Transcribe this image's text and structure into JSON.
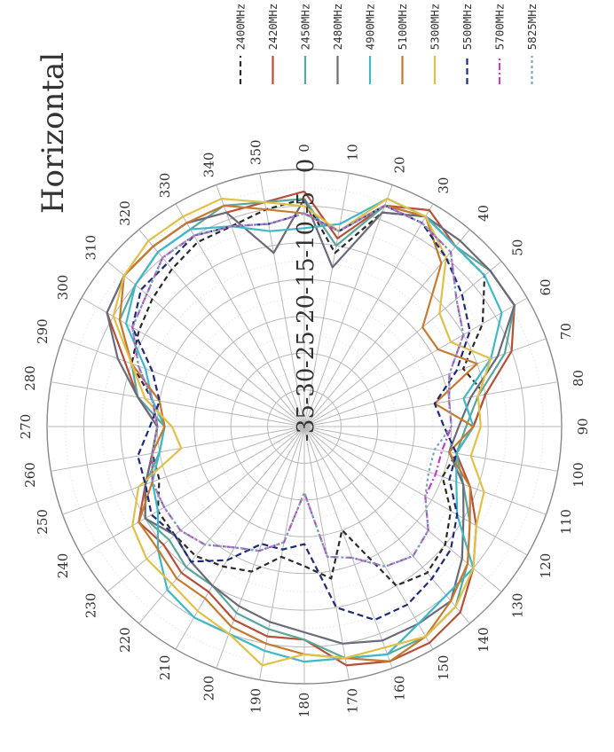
{
  "chart_data": {
    "type": "polar-line",
    "title": "Horizontal",
    "theta_unit": "deg",
    "r_ticks": [
      "0",
      "-5",
      "-10",
      "-15",
      "-20",
      "-25",
      "-30",
      "-35"
    ],
    "r_range": [
      -35,
      0
    ],
    "angle_ticks": [
      "0",
      "10",
      "20",
      "30",
      "40",
      "50",
      "60",
      "70",
      "80",
      "90",
      "100",
      "110",
      "120",
      "130",
      "140",
      "150",
      "160",
      "170",
      "180",
      "190",
      "200",
      "210",
      "220",
      "230",
      "240",
      "250",
      "260",
      "270",
      "280",
      "290",
      "300",
      "310",
      "320",
      "330",
      "340",
      "350"
    ],
    "angles": [
      0,
      10,
      20,
      30,
      40,
      50,
      60,
      70,
      80,
      90,
      100,
      110,
      120,
      130,
      140,
      150,
      160,
      170,
      180,
      190,
      200,
      210,
      220,
      230,
      240,
      250,
      260,
      270,
      280,
      290,
      300,
      310,
      320,
      330,
      340,
      350
    ],
    "grid": true,
    "legend_position": "top-right",
    "series": [
      {
        "name": "2400MHz",
        "color": "#2b2b2b",
        "dash": "6,4",
        "values": [
          -4,
          -11,
          -4,
          -2,
          -3,
          -3,
          -7,
          -12,
          -10,
          -12,
          -14,
          -15,
          -12,
          -10,
          -9,
          -10,
          -20,
          -14,
          -16,
          -17,
          -14,
          -13,
          -12,
          -12,
          -12,
          -14,
          -14,
          -15,
          -14,
          -10,
          -9,
          -8,
          -7,
          -6,
          -6,
          -5
        ]
      },
      {
        "name": "2420MHz",
        "color": "#b5503a",
        "dash": "",
        "values": [
          -3,
          -9,
          -3,
          -1,
          -3,
          -2,
          -2,
          -5,
          -10,
          -12,
          -14,
          -11,
          -8,
          -5,
          -2,
          -1,
          -1,
          -2,
          -6,
          -6,
          -7,
          -9,
          -9,
          -10,
          -9,
          -12,
          -14,
          -15,
          -12,
          -9,
          -4,
          -3,
          -3,
          -3,
          -4,
          -4
        ]
      },
      {
        "name": "2450MHz",
        "color": "#5aa79b",
        "dash": "",
        "values": [
          -4,
          -10,
          -3,
          -2,
          -3,
          -2,
          -2,
          -6,
          -11,
          -13,
          -14,
          -12,
          -9,
          -6,
          -3,
          -2,
          -2,
          -3,
          -6,
          -7,
          -8,
          -10,
          -10,
          -11,
          -10,
          -12,
          -15,
          -16,
          -12,
          -10,
          -6,
          -5,
          -4,
          -4,
          -3,
          -4
        ]
      },
      {
        "name": "2480MHz",
        "color": "#6a6a7a",
        "dash": "",
        "values": [
          -4,
          -13,
          -4,
          -2,
          -2,
          -2,
          -2,
          -7,
          -12,
          -14,
          -15,
          -12,
          -10,
          -7,
          -4,
          -4,
          -4,
          -5,
          -7,
          -8,
          -9,
          -10,
          -11,
          -12,
          -10,
          -12,
          -14,
          -15,
          -12,
          -8,
          -4,
          -3,
          -3,
          -3,
          -4,
          -11
        ]
      },
      {
        "name": "4900MHz",
        "color": "#3fb8c8",
        "dash": "",
        "values": [
          -8,
          -7,
          -2,
          -2,
          -3,
          -3,
          -4,
          -8,
          -13,
          -12,
          -14,
          -13,
          -11,
          -5,
          -5,
          -4,
          -2,
          -3,
          -3,
          -4,
          -5,
          -5,
          -6,
          -9,
          -12,
          -13,
          -15,
          -16,
          -14,
          -12,
          -7,
          -5,
          -4,
          -4,
          -6,
          -8
        ]
      },
      {
        "name": "5100MHz",
        "color": "#c67a2e",
        "dash": "",
        "values": [
          -6,
          -8,
          -3,
          -2,
          -6,
          -14,
          -14,
          -10,
          -17,
          -12,
          -15,
          -11,
          -9,
          -6,
          -4,
          -2,
          -1,
          -3,
          -4,
          -5,
          -6,
          -8,
          -8,
          -9,
          -9,
          -13,
          -14,
          -16,
          -15,
          -10,
          -6,
          -3,
          -3,
          -3,
          -3,
          -5
        ]
      },
      {
        "name": "5300MHz",
        "color": "#e0c046",
        "dash": "",
        "values": [
          -5,
          -8,
          -2,
          -2,
          -5,
          -11,
          -12,
          -8,
          -11,
          -11,
          -12,
          -9,
          -8,
          -5,
          -3,
          -2,
          -3,
          -3,
          -4,
          -2,
          -5,
          -6,
          -7,
          -7,
          -8,
          -11,
          -18,
          -17,
          -13,
          -10,
          -5,
          -3,
          -2,
          -2,
          -2,
          -4
        ]
      },
      {
        "name": "5500MHz",
        "color": "#1f2a7a",
        "dash": "7,4",
        "values": [
          -6,
          -8,
          -3,
          -3,
          -5,
          -7,
          -9,
          -13,
          -17,
          -16,
          -14,
          -14,
          -11,
          -9,
          -8,
          -7,
          -7,
          -10,
          -19,
          -18,
          -18,
          -14,
          -11,
          -12,
          -11,
          -12,
          -12,
          -14,
          -15,
          -13,
          -8,
          -6,
          -6,
          -5,
          -6,
          -7
        ]
      },
      {
        "name": "5700MHz",
        "color": "#c042c0",
        "dash": "8,3,2,3",
        "values": [
          -6,
          -8,
          -3,
          -3,
          -4,
          -8,
          -10,
          -14,
          -15,
          -15,
          -16,
          -16,
          -16,
          -13,
          -12,
          -13,
          -16,
          -17,
          -26,
          -19,
          -17,
          -16,
          -14,
          -13,
          -13,
          -13,
          -14,
          -15,
          -14,
          -11,
          -8,
          -7,
          -5,
          -5,
          -6,
          -7
        ]
      },
      {
        "name": "5825MHz",
        "color": "#7aa4b4",
        "dash": "3,3",
        "values": [
          -6,
          -8,
          -3,
          -3,
          -4,
          -8,
          -10,
          -14,
          -15,
          -15,
          -17,
          -17,
          -16,
          -13,
          -12,
          -13,
          -16,
          -17,
          -26,
          -19,
          -17,
          -16,
          -14,
          -13,
          -13,
          -13,
          -14,
          -15,
          -14,
          -11,
          -8,
          -7,
          -5,
          -5,
          -6,
          -7
        ]
      }
    ]
  }
}
